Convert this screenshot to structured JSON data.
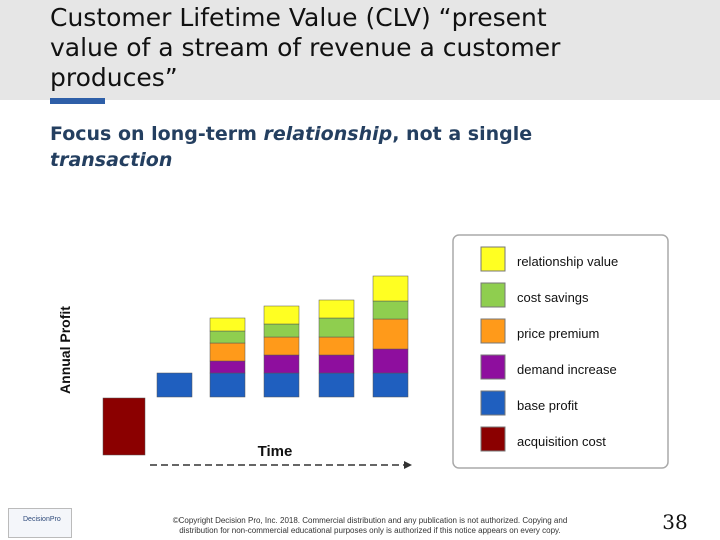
{
  "header": {
    "title_lines": [
      "Customer Lifetime Value (CLV)   “present",
      "value of a stream of revenue a customer",
      "produces”"
    ]
  },
  "subtitle": {
    "line1": [
      "Focus on long-term ",
      "relationship",
      ", not a single"
    ],
    "line2": [
      "transaction"
    ]
  },
  "diagram": {
    "y_axis_label": "Annual Profit",
    "x_axis_label": "Time",
    "legend": [
      "relationship value",
      "cost savings",
      "price premium",
      "demand increase",
      "base profit",
      "acquisition cost"
    ]
  },
  "footer": {
    "logo": "DecisionPro",
    "copyright_lines": [
      "©Copyright Decision Pro, Inc. 2018. Commercial distribution and any publication is not authorized. Copying and",
      "distribution for non-commercial educational purposes only is authorized if this notice appears on every copy."
    ],
    "page_number": "38"
  }
}
